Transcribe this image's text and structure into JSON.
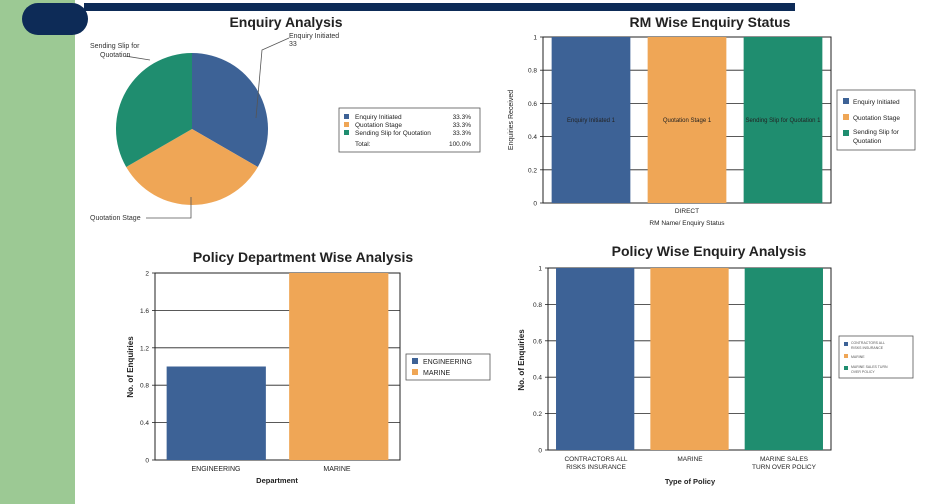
{
  "colors": {
    "blue": "#3d6296",
    "orange": "#efa656",
    "green": "#1f8d6f",
    "left_band": "#9cc994",
    "navy": "#0d2b57"
  },
  "chart_data": [
    {
      "id": "enquiry_analysis",
      "type": "pie",
      "title": "Enquiry Analysis",
      "slices": [
        {
          "label": "Enquiry Initiated",
          "value": 33.3,
          "color": "#3d6296"
        },
        {
          "label": "Quotation Stage",
          "value": 33.3,
          "color": "#efa656"
        },
        {
          "label": "Sending Slip for Quotation",
          "value": 33.3,
          "color": "#1f8d6f"
        }
      ],
      "callouts": {
        "enquiry": "Enquiry Initiated",
        "enquiry_value": "33",
        "sending_line1": "Sending Slip for",
        "sending_line2": "Quotation",
        "quotation": "Quotation Stage"
      },
      "legend_rows": [
        {
          "label": "Enquiry Initiated",
          "pct": "33.3%"
        },
        {
          "label": "Quotation Stage",
          "pct": "33.3%"
        },
        {
          "label": "Sending Slip for Quotation",
          "pct": "33.3%"
        }
      ],
      "legend_total_label": "Total:",
      "legend_total_value": "100.0%"
    },
    {
      "id": "rm_wise",
      "type": "bar",
      "title": "RM Wise Enquiry Status",
      "categories": [
        "DIRECT"
      ],
      "series": [
        {
          "name": "Enquiry Initiated",
          "values": [
            1
          ],
          "color": "#3d6296",
          "bar_label": "Enquiry Initiated 1"
        },
        {
          "name": "Quotation Stage",
          "values": [
            1
          ],
          "color": "#efa656",
          "bar_label": "Quotation Stage 1"
        },
        {
          "name": "Sending Slip for Quotation",
          "values": [
            1
          ],
          "color": "#1f8d6f",
          "bar_label": "Sending Slip for Quotation 1"
        }
      ],
      "ylabel": "Enquiries Received",
      "xlabel": "RM Name/ Enquiry Status",
      "ylim": [
        0,
        1
      ],
      "yticks": [
        "0",
        "0.2",
        "0.4",
        "0.6",
        "0.8",
        "1"
      ],
      "legend_items": [
        "Enquiry Initiated",
        "Quotation Stage",
        "Sending Slip for",
        "Quotation"
      ],
      "legend": "right"
    },
    {
      "id": "policy_department",
      "type": "bar",
      "title": "Policy Department Wise Analysis",
      "categories": [
        "ENGINEERING",
        "MARINE"
      ],
      "values": [
        1,
        2
      ],
      "colors": [
        "#3d6296",
        "#efa656"
      ],
      "ylabel": "No. of Enquiries",
      "xlabel": "Department",
      "ylim": [
        0,
        2
      ],
      "yticks": [
        "0",
        "0.4",
        "0.8",
        "1.2",
        "1.6",
        "2"
      ],
      "legend_items": [
        "ENGINEERING",
        "MARINE"
      ],
      "legend": "right"
    },
    {
      "id": "policy_wise",
      "type": "bar",
      "title": "Policy Wise Enquiry Analysis",
      "categories": [
        "CONTRACTORS ALL RISKS INSURANCE",
        "MARINE",
        "MARINE SALES TURN OVER POLICY"
      ],
      "category_lines": [
        [
          "CONTRACTORS ALL",
          "RISKS INSURANCE"
        ],
        [
          "MARINE"
        ],
        [
          "MARINE SALES",
          "TURN OVER POLICY"
        ]
      ],
      "values": [
        1,
        1,
        1
      ],
      "colors": [
        "#3d6296",
        "#efa656",
        "#1f8d6f"
      ],
      "ylabel": "No. of Enquiries",
      "xlabel": "Type of Policy",
      "ylim": [
        0,
        1
      ],
      "yticks": [
        "0",
        "0.2",
        "0.4",
        "0.6",
        "0.8",
        "1"
      ],
      "legend_items": [
        "CONTRACTORS ALL",
        "RISKS INSURANCE",
        "MARINE",
        "MARINE SALES TURN",
        "OVER POLICY"
      ],
      "legend": "right"
    }
  ]
}
